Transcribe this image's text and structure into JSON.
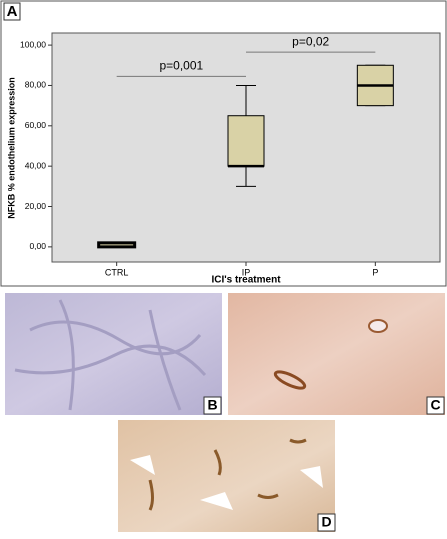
{
  "chart_data": {
    "type": "box",
    "panel_label": "A",
    "y_label": "NFKB % endothelium expression",
    "x_label": "ICI's treatment",
    "categories": [
      "CTRL",
      "IP",
      "P"
    ],
    "boxes": [
      {
        "min": 0,
        "q1": 0,
        "median": 2,
        "q3": 2,
        "max": 2
      },
      {
        "min": 30,
        "q1": 40,
        "median": 40,
        "q3": 65,
        "max": 80
      },
      {
        "min": 70,
        "q1": 70,
        "median": 80,
        "q3": 90,
        "max": 90
      }
    ],
    "color": "#d9d2a6",
    "ylim": [
      -7.5,
      106
    ],
    "yticks": [
      {
        "value": 0,
        "label": "0,00"
      },
      {
        "value": 20,
        "label": "20,00"
      },
      {
        "value": 40,
        "label": "40,00"
      },
      {
        "value": 60,
        "label": "60,00"
      },
      {
        "value": 80,
        "label": "80,00"
      },
      {
        "value": 100,
        "label": "100,00"
      }
    ],
    "annotations": [
      {
        "text": "p=0,001",
        "y": 84.5,
        "between": [
          "CTRL",
          "IP"
        ]
      },
      {
        "text": "p=0,02",
        "y": 96.5,
        "between": [
          "IP",
          "P"
        ]
      }
    ]
  },
  "panels": [
    {
      "label": "B"
    },
    {
      "label": "C"
    },
    {
      "label": "D"
    }
  ]
}
